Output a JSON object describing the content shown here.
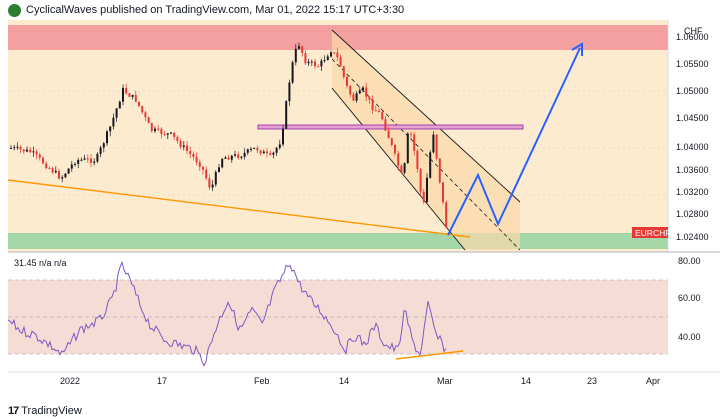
{
  "header": {
    "published_text": "CyclicalWaves published on TradingView.com, Mar 01, 2022 15:17 UTC+3:30"
  },
  "price_axis": {
    "currency": "CHF",
    "ticks": [
      "1.06000",
      "1.05500",
      "1.05000",
      "1.04500",
      "1.04000",
      "1.03600",
      "1.03200",
      "1.02800",
      "1.02400"
    ],
    "symbol_badge": "EURCHF"
  },
  "rsi": {
    "legend": "31.45  n/a  n/a",
    "ticks": [
      "80.00",
      "60.00",
      "40.00"
    ]
  },
  "time_axis": {
    "ticks": [
      "2022",
      "17",
      "Feb",
      "14",
      "Mar",
      "14",
      "23",
      "Apr"
    ]
  },
  "footer": {
    "brand": "TradingView",
    "icon": "tradingview-logo-icon"
  },
  "colors": {
    "resistance_zone": "#f4a0a0",
    "support_zone": "#a5d6a7",
    "background": "#fdebd0",
    "rsi_background": "#f5ddd6",
    "candle_up": "#131722",
    "candle_down": "#e53935",
    "trendline": "#ff9800",
    "projection": "#2962ff",
    "rsi_line": "#7e57c2",
    "badge": "#e53935",
    "channel_fill": "#fbd9a9"
  }
}
